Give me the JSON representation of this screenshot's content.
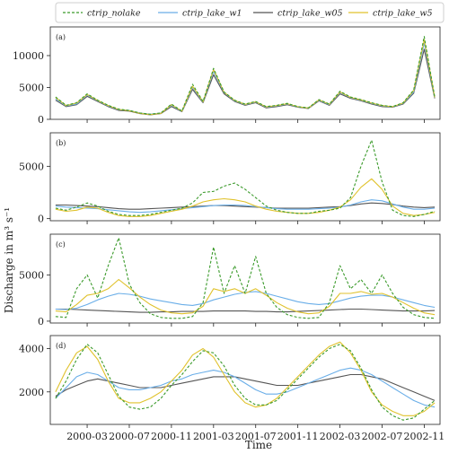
{
  "chart_data": {
    "type": "line",
    "xlabel": "Time",
    "ylabel": "Discharge in m³ s⁻¹",
    "x_tick_labels": [
      "2000-03",
      "2000-07",
      "2000-11",
      "2001-03",
      "2001-07",
      "2001-11",
      "2002-03",
      "2002-07",
      "2002-11"
    ],
    "legend": {
      "placement": "top",
      "entries": [
        {
          "name": "ctrip_nolake",
          "color": "#3a9a2a",
          "dash": true
        },
        {
          "name": "ctrip_lake_w1",
          "color": "#6aaee8",
          "dash": false
        },
        {
          "name": "ctrip_lake_w05",
          "color": "#555555",
          "dash": false
        },
        {
          "name": "ctrip_lake_w5",
          "color": "#e0c22c",
          "dash": false
        }
      ]
    },
    "x": [
      "1999-12",
      "2000-01",
      "2000-02",
      "2000-03",
      "2000-04",
      "2000-05",
      "2000-06",
      "2000-07",
      "2000-08",
      "2000-09",
      "2000-10",
      "2000-11",
      "2000-12",
      "2001-01",
      "2001-02",
      "2001-03",
      "2001-04",
      "2001-05",
      "2001-06",
      "2001-07",
      "2001-08",
      "2001-09",
      "2001-10",
      "2001-11",
      "2001-12",
      "2002-01",
      "2002-02",
      "2002-03",
      "2002-04",
      "2002-05",
      "2002-06",
      "2002-07",
      "2002-08",
      "2002-09",
      "2002-10",
      "2002-11",
      "2002-12"
    ],
    "panels": [
      {
        "label": "(a)",
        "ylim": [
          0,
          14500
        ],
        "yticks": [
          "0",
          "5000",
          "10000"
        ],
        "ytick_values": [
          0,
          5000,
          10000
        ],
        "series": [
          {
            "name": "ctrip_nolake",
            "values": [
              3500,
              2200,
              2600,
              4000,
              3000,
              2200,
              1600,
              1400,
              1000,
              800,
              1000,
              2400,
              1300,
              5500,
              2800,
              8000,
              4300,
              3000,
              2400,
              2800,
              2000,
              2200,
              2500,
              2000,
              1800,
              3100,
              2400,
              4400,
              3500,
              3100,
              2600,
              2200,
              2000,
              2600,
              4600,
              13000,
              3500
            ]
          },
          {
            "name": "ctrip_lake_w1",
            "values": [
              3200,
              2100,
              2400,
              3800,
              2900,
              2100,
              1500,
              1400,
              1000,
              800,
              1000,
              2200,
              1250,
              5000,
              2700,
              7500,
              4200,
              2900,
              2300,
              2700,
              1900,
              2100,
              2400,
              1950,
              1750,
              3000,
              2300,
              4200,
              3400,
              3000,
              2500,
              2100,
              1950,
              2500,
              4300,
              12000,
              3400
            ]
          },
          {
            "name": "ctrip_lake_w05",
            "values": [
              3000,
              2000,
              2300,
              3600,
              2800,
              2000,
              1400,
              1300,
              900,
              700,
              900,
              2000,
              1200,
              4700,
              2600,
              7000,
              4000,
              2800,
              2200,
              2600,
              1800,
              2000,
              2300,
              1900,
              1700,
              2900,
              2200,
              4000,
              3300,
              2900,
              2400,
              2000,
              1900,
              2400,
              4100,
              11000,
              3300
            ]
          },
          {
            "name": "ctrip_lake_w5",
            "values": [
              3400,
              2150,
              2550,
              3900,
              2950,
              2150,
              1550,
              1350,
              950,
              750,
              950,
              2300,
              1280,
              5200,
              2750,
              7800,
              4250,
              2950,
              2350,
              2750,
              1950,
              2150,
              2450,
              1980,
              1780,
              3050,
              2350,
              4300,
              3450,
              3050,
              2550,
              2150,
              1980,
              2550,
              4500,
              12500,
              3450
            ]
          }
        ]
      },
      {
        "label": "(b)",
        "ylim": [
          -200,
          8200
        ],
        "yticks": [
          "0",
          "5000"
        ],
        "ytick_values": [
          0,
          5000
        ],
        "series": [
          {
            "name": "ctrip_nolake",
            "values": [
              1000,
              800,
              1100,
              1500,
              1200,
              700,
              400,
              300,
              300,
              400,
              600,
              800,
              1000,
              1500,
              2500,
              2600,
              3100,
              3400,
              2800,
              2000,
              1200,
              800,
              600,
              500,
              500,
              700,
              800,
              1000,
              2000,
              5000,
              7500,
              3500,
              800,
              300,
              200,
              400,
              700
            ]
          },
          {
            "name": "ctrip_lake_w1",
            "values": [
              1200,
              1100,
              1050,
              1000,
              950,
              850,
              750,
              650,
              600,
              650,
              750,
              850,
              950,
              1050,
              1150,
              1250,
              1300,
              1300,
              1250,
              1150,
              1050,
              950,
              900,
              900,
              900,
              950,
              1000,
              1100,
              1300,
              1600,
              1800,
              1700,
              1400,
              1100,
              900,
              900,
              1000
            ]
          },
          {
            "name": "ctrip_lake_w05",
            "values": [
              1300,
              1300,
              1250,
              1200,
              1150,
              1050,
              950,
              900,
              900,
              950,
              1000,
              1050,
              1100,
              1150,
              1200,
              1250,
              1250,
              1200,
              1150,
              1100,
              1050,
              1000,
              1000,
              1000,
              1000,
              1050,
              1100,
              1150,
              1250,
              1400,
              1500,
              1450,
              1350,
              1200,
              1100,
              1050,
              1100
            ]
          },
          {
            "name": "ctrip_lake_w5",
            "values": [
              900,
              700,
              800,
              1100,
              1000,
              600,
              300,
              200,
              200,
              300,
              500,
              700,
              900,
              1200,
              1600,
              1800,
              1900,
              1800,
              1600,
              1200,
              900,
              700,
              600,
              500,
              500,
              600,
              800,
              1100,
              1800,
              3000,
              3800,
              2800,
              1200,
              500,
              300,
              400,
              600
            ]
          }
        ]
      },
      {
        "label": "(c)",
        "ylim": [
          -200,
          9400
        ],
        "yticks": [
          "0",
          "5000"
        ],
        "ytick_values": [
          0,
          5000
        ],
        "series": [
          {
            "name": "ctrip_nolake",
            "values": [
              500,
              400,
              3500,
              5000,
              2500,
              6000,
              9000,
              4000,
              2000,
              800,
              400,
              300,
              300,
              500,
              2000,
              8000,
              3000,
              6000,
              3000,
              7000,
              3000,
              1500,
              700,
              400,
              300,
              400,
              2000,
              6000,
              3500,
              4500,
              3000,
              5000,
              3000,
              1500,
              700,
              400,
              300
            ]
          },
          {
            "name": "ctrip_lake_w1",
            "values": [
              1300,
              1250,
              1400,
              1800,
              2300,
              2700,
              3000,
              2900,
              2700,
              2400,
              2200,
              2000,
              1800,
              1700,
              1900,
              2300,
              2600,
              2900,
              3100,
              3200,
              3000,
              2700,
              2400,
              2100,
              1900,
              1800,
              1900,
              2200,
              2500,
              2700,
              2800,
              2800,
              2600,
              2300,
              2000,
              1700,
              1500
            ]
          },
          {
            "name": "ctrip_lake_w05",
            "values": [
              1300,
              1300,
              1250,
              1200,
              1150,
              1100,
              1050,
              1000,
              950,
              950,
              1000,
              1000,
              1050,
              1050,
              1050,
              1100,
              1100,
              1100,
              1100,
              1050,
              1050,
              1000,
              1000,
              1050,
              1100,
              1150,
              1200,
              1250,
              1300,
              1300,
              1250,
              1200,
              1150,
              1100,
              1100,
              1100,
              1150
            ]
          },
          {
            "name": "ctrip_lake_w5",
            "values": [
              1100,
              1000,
              1800,
              2800,
              3000,
              3500,
              4500,
              3600,
              2600,
              1800,
              1200,
              900,
              800,
              900,
              1600,
              3500,
              3200,
              3500,
              3000,
              3500,
              2800,
              2000,
              1400,
              1000,
              800,
              900,
              1600,
              3000,
              3000,
              3200,
              2900,
              3000,
              2600,
              2000,
              1400,
              900,
              700
            ]
          }
        ]
      },
      {
        "label": "(d)",
        "ylim": [
          500,
          4600
        ],
        "yticks": [
          "2000",
          "4000"
        ],
        "ytick_values": [
          2000,
          4000
        ],
        "series": [
          {
            "name": "ctrip_nolake",
            "values": [
              1700,
              2500,
              3500,
              4200,
              3800,
              2800,
              1800,
              1300,
              1200,
              1300,
              1700,
              2300,
              2800,
              3400,
              3900,
              3800,
              3200,
              2300,
              1700,
              1400,
              1400,
              1600,
              2100,
              2600,
              3100,
              3600,
              4000,
              4200,
              3900,
              3100,
              2100,
              1300,
              900,
              700,
              800,
              1200,
              1600
            ]
          },
          {
            "name": "ctrip_lake_w1",
            "values": [
              1700,
              2200,
              2700,
              2900,
              2800,
              2500,
              2200,
              2100,
              2100,
              2200,
              2300,
              2500,
              2600,
              2800,
              2900,
              3000,
              2900,
              2700,
              2400,
              2100,
              1900,
              1900,
              2000,
              2200,
              2400,
              2600,
              2800,
              3000,
              3100,
              3000,
              2800,
              2500,
              2200,
              1900,
              1600,
              1400,
              1300
            ]
          },
          {
            "name": "ctrip_lake_w05",
            "values": [
              1800,
              2100,
              2300,
              2500,
              2600,
              2500,
              2400,
              2300,
              2200,
              2200,
              2200,
              2300,
              2400,
              2500,
              2600,
              2700,
              2700,
              2700,
              2600,
              2500,
              2400,
              2300,
              2300,
              2300,
              2400,
              2500,
              2600,
              2700,
              2800,
              2800,
              2700,
              2600,
              2400,
              2200,
              2000,
              1800,
              1600
            ]
          },
          {
            "name": "ctrip_lake_w5",
            "values": [
              2000,
              3000,
              3800,
              4100,
              3500,
              2500,
              1700,
              1500,
              1500,
              1700,
              2000,
              2500,
              3000,
              3700,
              4000,
              3600,
              2800,
              2000,
              1500,
              1300,
              1400,
              1700,
              2200,
              2700,
              3200,
              3700,
              4100,
              4300,
              3800,
              3000,
              2000,
              1400,
              1100,
              900,
              900,
              1100,
              1500
            ]
          }
        ]
      }
    ]
  }
}
